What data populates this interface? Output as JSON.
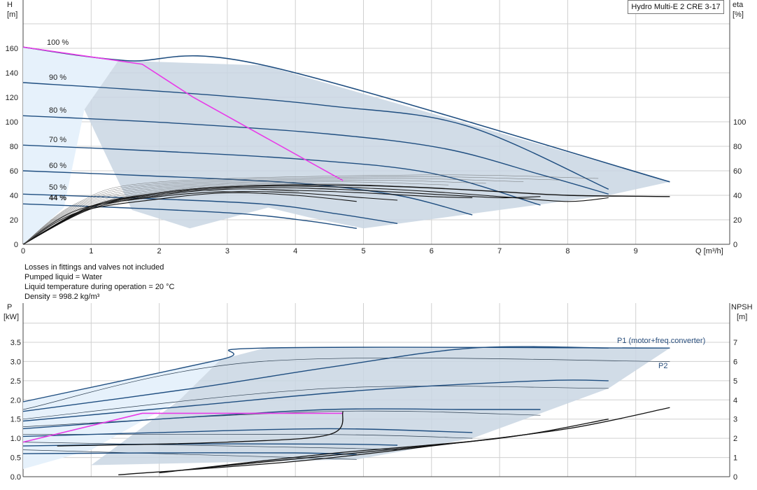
{
  "product": "Hydro Multi-E 2 CRE 3-17",
  "notes": [
    "Losses in fittings and valves not included",
    "Pumped liquid = Water",
    "Liquid temperature during operation = 20 °C",
    "Density = 998.2 kg/m³"
  ],
  "colors": {
    "curve": "#1f4e80",
    "envelope": "#c9d6e3",
    "low_envelope": "#e6f1fb",
    "duty": "#e83be8",
    "eff": "#111111",
    "grid": "#d0d0d0"
  },
  "chart_data": [
    {
      "type": "line",
      "name": "head",
      "x_axis": {
        "label": "Q [m³/h]",
        "min": 0,
        "max": 10.5,
        "ticks": [
          "0",
          "1",
          "2",
          "3",
          "4",
          "5",
          "6",
          "7",
          "8",
          "9"
        ]
      },
      "y_left": {
        "label_top": "H",
        "label_unit": "[m]",
        "min": 0,
        "max": 200,
        "ticks": [
          "0",
          "20",
          "40",
          "60",
          "80",
          "100",
          "120",
          "140",
          "160"
        ]
      },
      "y_right": {
        "label_top": "eta",
        "label_unit": "[%]",
        "min": 0,
        "max": 200,
        "ticks": [
          "0",
          "20",
          "40",
          "60",
          "80",
          "100"
        ]
      },
      "speed_labels": [
        "100 %",
        "90 %",
        "80 %",
        "70 %",
        "60 %",
        "50 %",
        "44 %"
      ],
      "speed_curves": [
        {
          "speed": 100,
          "points": [
            [
              0,
              161
            ],
            [
              1.5,
              150
            ],
            [
              3.55,
              146
            ],
            [
              9.5,
              51
            ]
          ]
        },
        {
          "speed": 90,
          "points": [
            [
              0,
              132
            ],
            [
              2.5,
              123
            ],
            [
              4.5,
              113
            ],
            [
              6.5,
              97
            ],
            [
              8.6,
              45
            ]
          ]
        },
        {
          "speed": 80,
          "points": [
            [
              0,
              105
            ],
            [
              2.2,
              99
            ],
            [
              4.5,
              90
            ],
            [
              6.2,
              78
            ],
            [
              7.6,
              57
            ],
            [
              8.6,
              41
            ]
          ]
        },
        {
          "speed": 70,
          "points": [
            [
              0,
              81
            ],
            [
              2.0,
              76
            ],
            [
              4.2,
              69
            ],
            [
              6.0,
              58
            ],
            [
              7.6,
              32
            ]
          ]
        },
        {
          "speed": 60,
          "points": [
            [
              0,
              60
            ],
            [
              1.8,
              56
            ],
            [
              4.0,
              50
            ],
            [
              5.5,
              40
            ],
            [
              6.6,
              24
            ]
          ]
        },
        {
          "speed": 50,
          "points": [
            [
              0,
              41
            ],
            [
              1.5,
              38
            ],
            [
              3.5,
              33
            ],
            [
              4.6,
              25
            ],
            [
              5.5,
              17
            ]
          ]
        },
        {
          "speed": 44,
          "points": [
            [
              0,
              33
            ],
            [
              1.4,
              30
            ],
            [
              3.2,
              25
            ],
            [
              4.2,
              19
            ],
            [
              4.9,
              13
            ]
          ]
        }
      ],
      "duty_line": [
        [
          0,
          161
        ],
        [
          1.75,
          147
        ],
        [
          2.5,
          120
        ],
        [
          4.7,
          52
        ]
      ],
      "efficiency_curves": [
        {
          "points": [
            [
              0,
              0
            ],
            [
              1,
              31
            ],
            [
              2,
              42
            ],
            [
              3,
              47
            ],
            [
              4,
              48.5
            ],
            [
              5,
              48
            ],
            [
              6,
              46
            ],
            [
              7,
              43
            ],
            [
              8,
              40
            ],
            [
              9.5,
              39
            ]
          ]
        },
        {
          "points": [
            [
              0,
              0
            ],
            [
              1,
              30
            ],
            [
              2,
              42
            ],
            [
              3,
              47
            ],
            [
              4,
              47.5
            ],
            [
              5,
              46
            ],
            [
              6,
              43
            ],
            [
              7,
              39
            ],
            [
              8,
              35
            ],
            [
              8.6,
              38
            ]
          ]
        },
        {
          "points": [
            [
              0,
              0
            ],
            [
              1,
              30
            ],
            [
              2,
              41
            ],
            [
              3,
              46
            ],
            [
              4,
              46
            ],
            [
              5,
              44
            ],
            [
              6,
              41
            ],
            [
              7,
              38
            ],
            [
              7.6,
              39
            ]
          ]
        },
        {
          "points": [
            [
              0,
              0
            ],
            [
              1,
              29
            ],
            [
              2,
              40
            ],
            [
              3,
              45
            ],
            [
              4,
              44
            ],
            [
              5,
              42
            ],
            [
              6,
              39
            ],
            [
              6.6,
              38
            ]
          ]
        },
        {
          "points": [
            [
              0,
              0
            ],
            [
              0.8,
              28
            ],
            [
              2,
              39
            ],
            [
              3,
              43
            ],
            [
              4,
              42
            ],
            [
              5,
              38
            ],
            [
              5.5,
              36
            ]
          ]
        },
        {
          "points": [
            [
              0,
              0
            ],
            [
              0.8,
              26
            ],
            [
              2,
              37
            ],
            [
              3,
              42
            ],
            [
              4,
              40
            ],
            [
              4.9,
              35
            ]
          ]
        }
      ]
    },
    {
      "type": "line",
      "name": "power",
      "x_axis": {
        "min": 0,
        "max": 10.5
      },
      "y_left": {
        "label_top": "P",
        "label_unit": "[kW]",
        "min": 0,
        "max": 4.5,
        "ticks": [
          "0.0",
          "0.5",
          "1.0",
          "1.5",
          "2.0",
          "2.5",
          "3.0",
          "3.5"
        ]
      },
      "y_right": {
        "label_top": "NPSH",
        "label_unit": "[m]",
        "min": 0,
        "max": 9,
        "ticks": [
          "0",
          "1",
          "2",
          "3",
          "4",
          "5",
          "6",
          "7"
        ]
      },
      "series_labels": [
        "P1 (motor+freq.converter)",
        "P2"
      ],
      "p1_curves": [
        {
          "points": [
            [
              0,
              1.95
            ],
            [
              2.9,
              3.05
            ],
            [
              3.55,
              3.35
            ],
            [
              9.5,
              3.35
            ]
          ]
        },
        {
          "points": [
            [
              0,
              1.7
            ],
            [
              2.5,
              2.3
            ],
            [
              4.5,
              2.85
            ],
            [
              6.6,
              3.35
            ],
            [
              8.6,
              3.35
            ]
          ]
        },
        {
          "points": [
            [
              0,
              1.45
            ],
            [
              2.5,
              1.85
            ],
            [
              5,
              2.25
            ],
            [
              7.6,
              2.5
            ],
            [
              8.6,
              2.5
            ]
          ]
        },
        {
          "points": [
            [
              0,
              1.25
            ],
            [
              2.0,
              1.5
            ],
            [
              4.5,
              1.75
            ],
            [
              6.5,
              1.75
            ],
            [
              7.6,
              1.75
            ]
          ]
        },
        {
          "points": [
            [
              0,
              1.05
            ],
            [
              2.0,
              1.15
            ],
            [
              4.5,
              1.25
            ],
            [
              6.6,
              1.15
            ]
          ]
        },
        {
          "points": [
            [
              0,
              0.8
            ],
            [
              2.0,
              0.85
            ],
            [
              4.5,
              0.85
            ],
            [
              5.5,
              0.82
            ]
          ]
        },
        {
          "points": [
            [
              0,
              0.6
            ],
            [
              2.0,
              0.62
            ],
            [
              4.0,
              0.62
            ],
            [
              4.9,
              0.58
            ]
          ]
        }
      ],
      "p2_curves": [
        {
          "points": [
            [
              0,
              1.75
            ],
            [
              3.5,
              3.0
            ],
            [
              9.5,
              3.0
            ]
          ]
        },
        {
          "points": [
            [
              0,
              1.5
            ],
            [
              4.5,
              2.3
            ],
            [
              8.6,
              2.3
            ]
          ]
        },
        {
          "points": [
            [
              0,
              1.3
            ],
            [
              4.5,
              1.7
            ],
            [
              7.6,
              1.6
            ]
          ]
        },
        {
          "points": [
            [
              0,
              1.1
            ],
            [
              4.5,
              1.1
            ],
            [
              6.6,
              1.0
            ]
          ]
        },
        {
          "points": [
            [
              0,
              0.9
            ],
            [
              4.5,
              0.75
            ],
            [
              5.5,
              0.7
            ]
          ]
        },
        {
          "points": [
            [
              0,
              0.7
            ],
            [
              4.0,
              0.5
            ],
            [
              4.9,
              0.45
            ]
          ]
        }
      ],
      "duty_line": [
        [
          0,
          0.9
        ],
        [
          1.4,
          1.5
        ],
        [
          1.75,
          1.65
        ],
        [
          4.7,
          1.65
        ]
      ],
      "npsh_curves": [
        {
          "points": [
            [
              1.4,
              0.05
            ],
            [
              4.0,
              0.4
            ],
            [
              6,
              0.8
            ],
            [
              8,
              1.25
            ],
            [
              9.5,
              1.8
            ]
          ]
        },
        {
          "points": [
            [
              2,
              0.1
            ],
            [
              4.5,
              0.6
            ],
            [
              7,
              1.0
            ],
            [
              8.6,
              1.5
            ]
          ]
        },
        {
          "points": [
            [
              2.5,
              0.2
            ],
            [
              4.5,
              0.55
            ],
            [
              6.5,
              0.9
            ],
            [
              7.6,
              1.15
            ]
          ]
        },
        {
          "points": [
            [
              0.5,
              0.8
            ],
            [
              3,
              0.9
            ],
            [
              4.5,
              1.1
            ],
            [
              4.7,
              1.7
            ]
          ]
        }
      ]
    }
  ]
}
